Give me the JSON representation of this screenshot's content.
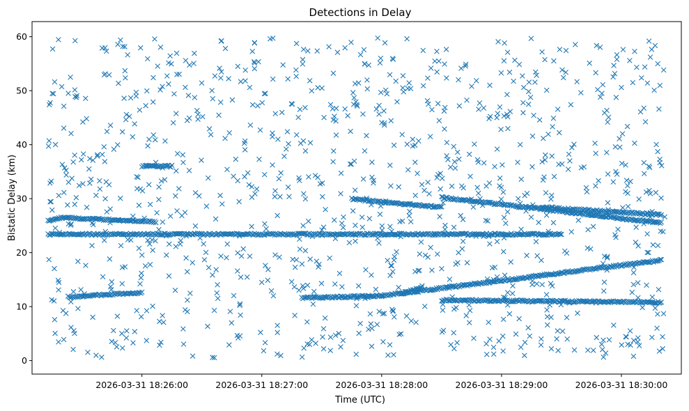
{
  "chart_data": {
    "type": "scatter",
    "title": "Detections in Delay",
    "xlabel": "Time (UTC)",
    "ylabel": "Bistatic Delay (km)",
    "marker": "x",
    "color": "#1f77b4",
    "grid": false,
    "legend": "none",
    "x_start": "2026-03-31 18:25:13",
    "x_end": "2026-03-31 18:30:22",
    "xlim": [
      "2026-03-31 18:25:05",
      "2026-03-31 18:30:30"
    ],
    "ylim": [
      -2.5,
      62.8
    ],
    "x_ticks": [
      {
        "value": "2026-03-31 18:26:00",
        "label": "2026-03-31 18:26:00"
      },
      {
        "value": "2026-03-31 18:27:00",
        "label": "2026-03-31 18:27:00"
      },
      {
        "value": "2026-03-31 18:28:00",
        "label": "2026-03-31 18:28:00"
      },
      {
        "value": "2026-03-31 18:29:00",
        "label": "2026-03-31 18:29:00"
      },
      {
        "value": "2026-03-31 18:30:00",
        "label": "2026-03-31 18:30:00"
      }
    ],
    "y_ticks": [
      {
        "value": 0,
        "label": "0"
      },
      {
        "value": 10,
        "label": "10"
      },
      {
        "value": 20,
        "label": "20"
      },
      {
        "value": 30,
        "label": "30"
      },
      {
        "value": 40,
        "label": "40"
      },
      {
        "value": 50,
        "label": "50"
      },
      {
        "value": 60,
        "label": "60"
      }
    ],
    "tracks": [
      {
        "start": [
          "2026-03-31 18:25:13",
          23.4
        ],
        "end": [
          "2026-03-31 18:28:00",
          23.4
        ]
      },
      {
        "start": [
          "2026-03-31 18:28:00",
          23.4
        ],
        "end": [
          "2026-03-31 18:29:30",
          23.4
        ]
      },
      {
        "start": [
          "2026-03-31 18:25:13",
          25.9
        ],
        "end": [
          "2026-03-31 18:25:20",
          26.5
        ]
      },
      {
        "start": [
          "2026-03-31 18:25:20",
          26.5
        ],
        "end": [
          "2026-03-31 18:26:07",
          25.7
        ]
      },
      {
        "start": [
          "2026-03-31 18:25:23",
          11.8
        ],
        "end": [
          "2026-03-31 18:26:00",
          12.6
        ]
      },
      {
        "start": [
          "2026-03-31 18:26:00",
          36.0
        ],
        "end": [
          "2026-03-31 18:26:15",
          36.0
        ]
      },
      {
        "start": [
          "2026-03-31 18:27:45",
          29.9
        ],
        "end": [
          "2026-03-31 18:28:30",
          28.4
        ]
      },
      {
        "start": [
          "2026-03-31 18:28:30",
          30.2
        ],
        "end": [
          "2026-03-31 18:30:20",
          25.5
        ]
      },
      {
        "start": [
          "2026-03-31 18:29:20",
          28.4
        ],
        "end": [
          "2026-03-31 18:30:20",
          27.0
        ]
      },
      {
        "start": [
          "2026-03-31 18:27:20",
          11.6
        ],
        "end": [
          "2026-03-31 18:28:00",
          12.0
        ]
      },
      {
        "start": [
          "2026-03-31 18:28:00",
          12.0
        ],
        "end": [
          "2026-03-31 18:30:20",
          18.6
        ]
      },
      {
        "start": [
          "2026-03-31 18:28:10",
          12.5
        ],
        "end": [
          "2026-03-31 18:28:20",
          13.5
        ]
      },
      {
        "start": [
          "2026-03-31 18:28:30",
          11.2
        ],
        "end": [
          "2026-03-31 18:30:20",
          10.8
        ]
      }
    ],
    "clutter_points_approx": 1100,
    "clutter_y_range": [
      0.5,
      60
    ]
  }
}
